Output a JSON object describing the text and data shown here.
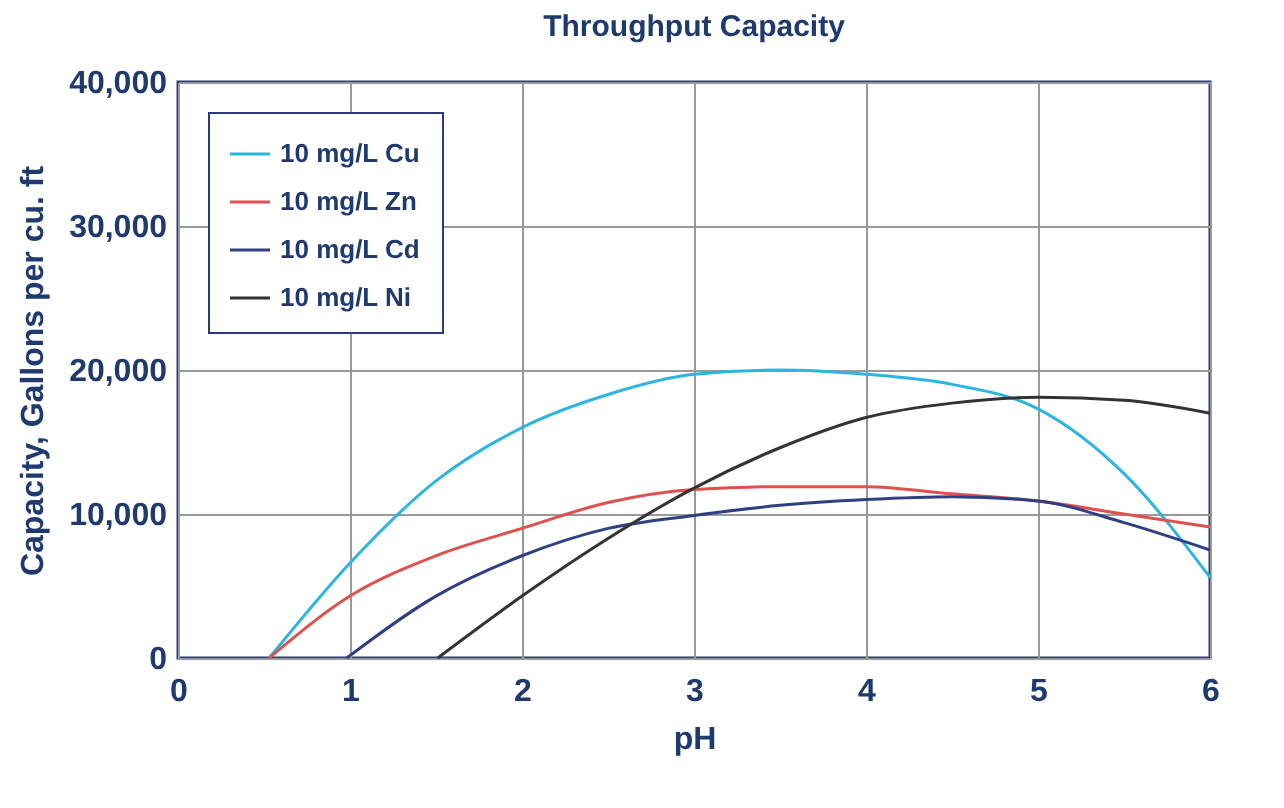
{
  "chart_data": {
    "type": "line",
    "title": "Throughput Capacity",
    "xlabel": "pH",
    "ylabel": "Capacity, Gallons per cu. ft",
    "x": [
      0.53,
      1,
      1.5,
      2,
      2.5,
      3,
      3.5,
      4,
      4.5,
      5,
      5.5,
      6
    ],
    "series": [
      {
        "name": "10 mg/L Cu",
        "color": "#2bb5e0",
        "values": [
          0,
          6600,
          12300,
          16000,
          18300,
          19700,
          20000,
          19700,
          19000,
          17300,
          12800,
          5600
        ]
      },
      {
        "name": "10 mg/L Zn",
        "color": "#e0504f",
        "values": [
          0,
          4300,
          7100,
          9000,
          10800,
          11700,
          11900,
          11900,
          11400,
          10900,
          10000,
          9100
        ]
      },
      {
        "name": "10 mg/L Cd",
        "color": "#2f3f84",
        "x": [
          0.98,
          1.5,
          2,
          2.5,
          3,
          3.5,
          4,
          4.5,
          5,
          5.5,
          6
        ],
        "values": [
          0,
          4300,
          7100,
          9000,
          9900,
          10600,
          11000,
          11200,
          10900,
          9400,
          7500
        ]
      },
      {
        "name": "10 mg/L Ni",
        "color": "#333333",
        "x": [
          1.51,
          2,
          2.5,
          3,
          3.5,
          4,
          4.5,
          5,
          5.5,
          6
        ],
        "values": [
          0,
          4300,
          8300,
          11800,
          14600,
          16700,
          17700,
          18100,
          17900,
          17000
        ]
      }
    ],
    "xlim": [
      0,
      6
    ],
    "xticks": [
      0,
      1,
      2,
      3,
      4,
      5,
      6
    ],
    "ylim": [
      0,
      40000
    ],
    "yticks": [
      0,
      {
        "value": 10000,
        "label": "10,000"
      },
      {
        "value": 20000,
        "label": "20,000"
      },
      {
        "value": 30000,
        "label": "30,000"
      },
      {
        "value": 40000,
        "label": "40,000"
      }
    ],
    "grid": true,
    "legend": "top left",
    "line_style": "solid",
    "marker": "none"
  }
}
